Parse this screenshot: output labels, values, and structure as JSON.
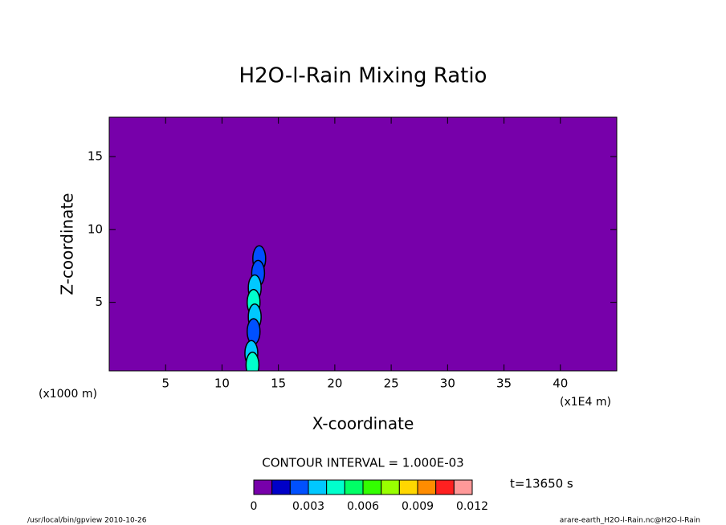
{
  "chart_data": {
    "type": "contour",
    "title": "H2O-l-Rain Mixing Ratio",
    "x_label": "X-coordinate",
    "y_label": "Z-coordinate",
    "x_unit": "(x1E4 m)",
    "y_unit": "(x1000 m)",
    "xlim": [
      0,
      45
    ],
    "xticks": [
      5,
      10,
      15,
      20,
      25,
      30,
      35,
      40
    ],
    "ylim": [
      0.3,
      17.7
    ],
    "yticks": [
      5,
      10,
      15
    ],
    "contour_interval": "CONTOUR INTERVAL = 1.000E-03",
    "time_label": "t=13650 s",
    "levels": [
      0,
      0.001,
      0.002,
      0.003,
      0.004,
      0.005,
      0.006,
      0.007,
      0.008,
      0.009,
      0.01,
      0.011,
      0.012
    ],
    "colors": [
      "#7700aa",
      "#0000c8",
      "#0050ff",
      "#00c8ff",
      "#00ffcc",
      "#00ff66",
      "#33ff00",
      "#99ff00",
      "#ffd700",
      "#ff8c00",
      "#ff2020",
      "#ff9999"
    ],
    "colorbar_ticks": [
      0,
      0.003,
      0.006,
      0.009,
      0.012
    ],
    "field": {
      "x": [
        13.3,
        13.2,
        12.9,
        12.8,
        12.9,
        12.8,
        12.6,
        12.7
      ],
      "z": [
        8.0,
        7.0,
        6.0,
        5.0,
        4.0,
        3.0,
        1.5,
        0.7
      ],
      "values": [
        0.002,
        0.002,
        0.003,
        0.004,
        0.003,
        0.002,
        0.003,
        0.004
      ]
    },
    "footer_left": "/usr/local/bin/gpview  2010-10-26",
    "footer_right": "arare-earth_H2O-l-Rain.nc@H2O-l-Rain"
  }
}
